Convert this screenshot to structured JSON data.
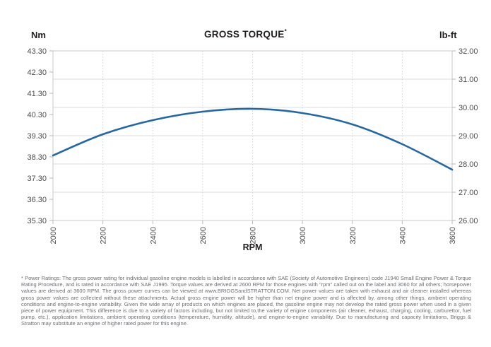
{
  "page": {
    "title": "GROSS TORQUE",
    "title_superscript": "*",
    "left_axis_unit": "Nm",
    "right_axis_unit": "lb-ft",
    "x_axis_label": "RPM",
    "footnote": "* Power Ratings: The gross power rating for individual gasoline engine models is labelled in accordance with SAE (Society of Automotive Engineers) code J1940 Small Engine Power & Torque Rating Procedure, and is rated in accordance with SAE J1995. Torque values are derived at 2600 RPM for those engines with \"rpm\" called out on the label and 3060 for all others; horsepower values are derived at 3600 RPM. The gross power curves can be viewed at www.BRIGGSandSTRATTON.COM. Net power values are taken with exhaust and air cleaner installed whereas gross power values are collected without these attachments. Actual gross engine power will be higher than net engine power and is affected by, among other things, ambient operating conditions and engine-to-engine variability. Given the wide array of products on which engines are placed, the gasoline engine may not develop the rated gross power when used in a given piece of power equipment. This difference is due to a variety of factors including, but not limited to,the variety of engine components (air cleaner, exhaust, charging, cooling, carburettor, fuel pump, etc.), application limitations, ambient operating conditions (temperature, humidity, altitude), and engine-to-engine variability. Due to manufacturing and capacity limitations, Briggs & Stratton may substitute an engine of higher rated power for this engine."
  },
  "chart_data": {
    "type": "line",
    "title": "GROSS TORQUE*",
    "xlabel": "RPM",
    "left_ylabel": "Nm",
    "right_ylabel": "lb-ft",
    "x": [
      2000,
      2200,
      2400,
      2600,
      2800,
      3000,
      3200,
      3400,
      3600
    ],
    "series": [
      {
        "name": "Gross Torque (Nm, left axis)",
        "values": [
          38.4,
          39.4,
          40.1,
          40.5,
          40.6,
          40.4,
          39.9,
          38.9,
          37.7
        ]
      },
      {
        "name": "Gross Torque (lb-ft, right axis)",
        "values": [
          28.3,
          29.05,
          29.55,
          29.85,
          29.95,
          29.8,
          29.4,
          28.7,
          27.8
        ]
      }
    ],
    "x_ticks": [
      2000,
      2200,
      2400,
      2600,
      2800,
      3000,
      3200,
      3400,
      3600
    ],
    "left_tick_labels": [
      "43.30",
      "42.30",
      "41.30",
      "40.30",
      "39.30",
      "38.30",
      "37.30",
      "36.30",
      "35.30"
    ],
    "right_tick_labels": [
      "32.00",
      "31.00",
      "30.00",
      "29.00",
      "28.00",
      "27.00",
      "26.00"
    ],
    "left_ylim": [
      35.3,
      43.3
    ],
    "right_ylim": [
      26.0,
      32.0
    ],
    "xlim": [
      2000,
      3600
    ],
    "grid": {
      "horizontal": "solid lines at right-axis (lb-ft) ticks",
      "vertical": "dotted lines at each 200 RPM tick"
    },
    "legend": "none",
    "line_color": "#2268a8",
    "grid_color": "#dcdcdc",
    "border_color": "#c8c8c8",
    "tick_label_color": "#4d4d4f"
  }
}
